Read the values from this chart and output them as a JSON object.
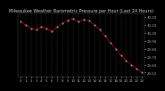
{
  "title": "Milwaukee Weather Barometric Pressure per Hour (Last 24 Hours)",
  "background_color": "#000000",
  "plot_bg_color": "#000000",
  "grid_color": "#555555",
  "line_color": "#ff0000",
  "marker_color": "#888888",
  "hours": [
    0,
    1,
    2,
    3,
    4,
    5,
    6,
    7,
    8,
    9,
    10,
    11,
    12,
    13,
    14,
    15,
    16,
    17,
    18,
    19,
    20,
    21,
    22,
    23
  ],
  "pressure": [
    30.14,
    30.1,
    30.06,
    30.04,
    30.08,
    30.05,
    30.02,
    30.08,
    30.12,
    30.16,
    30.18,
    30.14,
    30.17,
    30.15,
    30.1,
    30.04,
    29.96,
    29.88,
    29.8,
    29.72,
    29.65,
    29.6,
    29.55,
    29.5
  ],
  "ylim": [
    29.45,
    30.25
  ],
  "ytick_values": [
    29.5,
    29.6,
    29.7,
    29.8,
    29.9,
    30.0,
    30.1,
    30.2
  ],
  "title_fontsize": 3.5,
  "tick_fontsize": 2.8,
  "line_width": 0.6,
  "marker_size": 1.2,
  "title_color": "#cccccc",
  "tick_color": "#aaaaaa",
  "spine_color": "#555555"
}
